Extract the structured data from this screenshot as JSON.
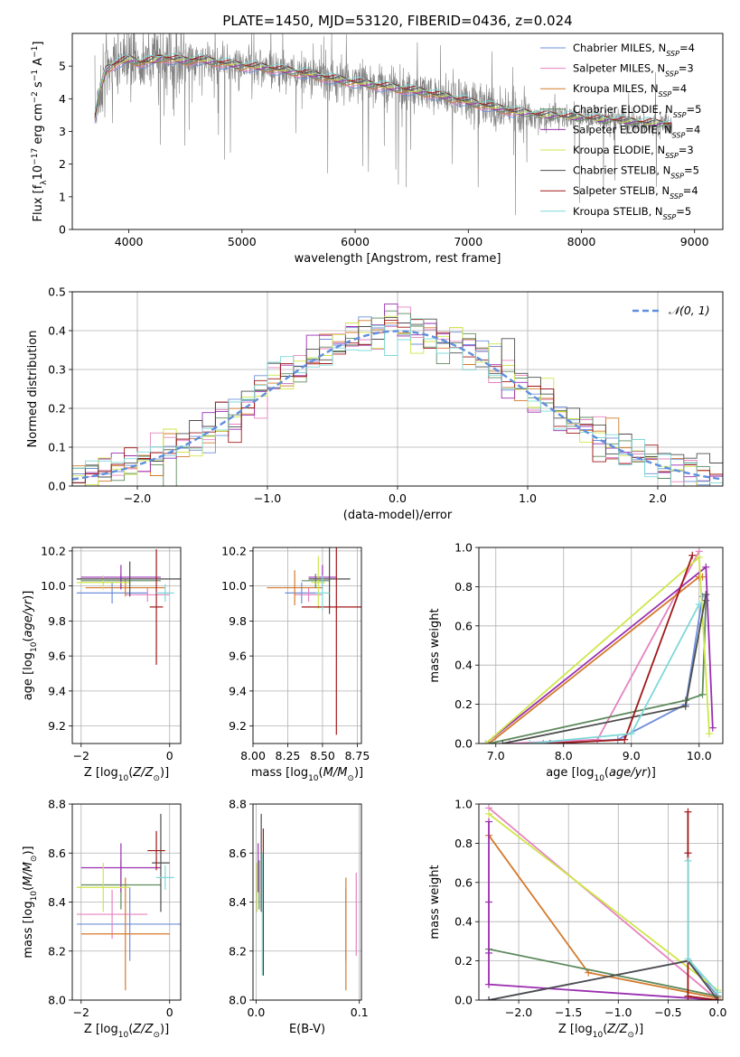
{
  "figure": {
    "title": "PLATE=1450, MJD=53120, FIBERID=0436, z=0.024"
  },
  "colors": {
    "chabrier_miles": "#6f8fd8",
    "salpeter_miles": "#e583c0",
    "kroupa_miles": "#d47a2c",
    "chabrier_elodie": "#5e8a5e",
    "salpeter_elodie": "#9a2fb0",
    "kroupa_elodie": "#cfe64b",
    "chabrier_stelib": "#4d4d4d",
    "salpeter_stelib": "#a01818",
    "kroupa_stelib": "#7fd8d8",
    "data": "#808080",
    "gaussian": "#5f8fdc",
    "grid": "#b0b0b0"
  },
  "chart_data": [
    {
      "id": "spectrum",
      "type": "line",
      "xlabel": "wavelength [Angstrom, rest frame]",
      "ylabel": "Flux [f_λ 10^-17 erg cm^-2 s^-1 A^-1]",
      "xlim": [
        3500,
        9250
      ],
      "ylim": [
        0,
        6
      ],
      "xticks": [
        4000,
        5000,
        6000,
        7000,
        8000,
        9000
      ],
      "yticks": [
        0,
        1,
        2,
        3,
        4,
        5
      ],
      "legend_position": "top-right",
      "data_series": {
        "name": "",
        "x_range": [
          3700,
          8800
        ]
      },
      "continuum_model": {
        "x": [
          3700,
          3750,
          3800,
          3900,
          4000,
          4100,
          4200,
          4300,
          4400,
          4500,
          4600,
          4800,
          5000,
          5200,
          5400,
          5600,
          5800,
          6000,
          6200,
          6400,
          6600,
          6800,
          7000,
          7200,
          7400,
          7600,
          7800,
          8000,
          8200,
          8400,
          8600,
          8800
        ],
        "y": [
          3.4,
          4.3,
          4.9,
          5.1,
          5.2,
          5.1,
          5.15,
          5.25,
          5.2,
          5.15,
          5.2,
          5.1,
          5.0,
          4.95,
          4.85,
          4.75,
          4.6,
          4.5,
          4.4,
          4.3,
          4.2,
          4.05,
          3.9,
          3.75,
          3.6,
          3.5,
          3.45,
          3.4,
          3.35,
          3.3,
          3.25,
          3.2
        ]
      },
      "series": [
        {
          "name": "Chabrier MILES, N_SSP=4",
          "label_main": "Chabrier MILES, N",
          "label_sub": "SSP",
          "label_end": "=4",
          "color_key": "chabrier_miles"
        },
        {
          "name": "Salpeter MILES, N_SSP=3",
          "label_main": "Salpeter MILES, N",
          "label_sub": "SSP",
          "label_end": "=3",
          "color_key": "salpeter_miles"
        },
        {
          "name": "Kroupa MILES, N_SSP=4",
          "label_main": "Kroupa MILES, N",
          "label_sub": "SSP",
          "label_end": "=4",
          "color_key": "kroupa_miles"
        },
        {
          "name": "Chabrier ELODIE, N_SSP=5",
          "label_main": "Chabrier ELODIE, N",
          "label_sub": "SSP",
          "label_end": "=5",
          "color_key": "chabrier_elodie"
        },
        {
          "name": "Salpeter ELODIE, N_SSP=4",
          "label_main": "Salpeter ELODIE, N",
          "label_sub": "SSP",
          "label_end": "=4",
          "color_key": "salpeter_elodie"
        },
        {
          "name": "Kroupa ELODIE, N_SSP=3",
          "label_main": "Kroupa ELODIE, N",
          "label_sub": "SSP",
          "label_end": "=3",
          "color_key": "kroupa_elodie"
        },
        {
          "name": "Chabrier STELIB, N_SSP=5",
          "label_main": "Chabrier STELIB, N",
          "label_sub": "SSP",
          "label_end": "=5",
          "color_key": "chabrier_stelib"
        },
        {
          "name": "Salpeter STELIB, N_SSP=4",
          "label_main": "Salpeter STELIB, N",
          "label_sub": "SSP",
          "label_end": "=4",
          "color_key": "salpeter_stelib"
        },
        {
          "name": "Kroupa STELIB, N_SSP=5",
          "label_main": "Kroupa STELIB, N",
          "label_sub": "SSP",
          "label_end": "=5",
          "color_key": "kroupa_stelib"
        }
      ]
    },
    {
      "id": "residuals",
      "type": "line",
      "xlabel": "(data-model)/error",
      "ylabel": "Normed distribution",
      "xlim": [
        -2.5,
        2.5
      ],
      "ylim": [
        0,
        0.5
      ],
      "xticks": [
        -2,
        -1,
        0,
        1,
        2
      ],
      "yticks": [
        0.0,
        0.1,
        0.2,
        0.3,
        0.4,
        0.5
      ],
      "legend_position": "top-right",
      "gaussian_legend": "𝒩(0, 1)",
      "bin_width": 0.1
    },
    {
      "id": "age_vs_z",
      "type": "scatter",
      "xlabel": "Z [log10(Z/Z_sun)]",
      "ylabel": "age [log10(age/yr)]",
      "xlim": [
        -2.2,
        0.25
      ],
      "ylim": [
        9.1,
        10.22
      ],
      "xticks": [
        -2,
        0
      ],
      "yticks": [
        9.2,
        9.4,
        9.6,
        9.8,
        10.0,
        10.2
      ],
      "points": [
        {
          "color_key": "chabrier_miles",
          "x": -1.3,
          "xerr": 0.8,
          "y": 9.96,
          "yerr": 0.06
        },
        {
          "color_key": "salpeter_miles",
          "x": -0.5,
          "xerr": 0.5,
          "y": 9.95,
          "yerr": 0.04
        },
        {
          "color_key": "kroupa_miles",
          "x": -1.0,
          "xerr": 0.9,
          "y": 9.99,
          "yerr": 0.05
        },
        {
          "color_key": "chabrier_elodie",
          "x": -1.1,
          "xerr": 0.9,
          "y": 10.03,
          "yerr": 0.04
        },
        {
          "color_key": "salpeter_elodie",
          "x": -1.1,
          "xerr": 0.9,
          "y": 10.05,
          "yerr": 0.07
        },
        {
          "color_key": "kroupa_elodie",
          "x": -1.5,
          "xerr": 0.6,
          "y": 10.02,
          "yerr": 0.04
        },
        {
          "color_key": "chabrier_stelib",
          "x": -0.9,
          "xerr": 1.2,
          "y": 10.04,
          "yerr": 0.1
        },
        {
          "color_key": "salpeter_stelib",
          "x": -0.3,
          "xerr": 0.15,
          "y": 9.88,
          "yerr": 0.33
        },
        {
          "color_key": "kroupa_stelib",
          "x": -0.1,
          "xerr": 0.2,
          "y": 9.96,
          "yerr": 0.05
        }
      ]
    },
    {
      "id": "age_vs_mass",
      "type": "scatter",
      "xlabel": "mass [log10(M/M_sun)]",
      "ylabel": "",
      "xlim": [
        8.0,
        8.78
      ],
      "ylim": [
        9.1,
        10.22
      ],
      "xticks": [
        8.0,
        8.25,
        8.5,
        8.75
      ],
      "yticks": [
        9.2,
        9.4,
        9.6,
        9.8,
        10.0,
        10.2
      ],
      "points": [
        {
          "color_key": "chabrier_miles",
          "x": 8.35,
          "xerr": 0.12,
          "y": 9.96,
          "yerr": 0.06
        },
        {
          "color_key": "salpeter_miles",
          "x": 8.4,
          "xerr": 0.1,
          "y": 9.95,
          "yerr": 0.04
        },
        {
          "color_key": "kroupa_miles",
          "x": 8.3,
          "xerr": 0.2,
          "y": 9.99,
          "yerr": 0.1
        },
        {
          "color_key": "chabrier_elodie",
          "x": 8.45,
          "xerr": 0.1,
          "y": 10.03,
          "yerr": 0.04
        },
        {
          "color_key": "salpeter_elodie",
          "x": 8.5,
          "xerr": 0.1,
          "y": 10.05,
          "yerr": 0.07
        },
        {
          "color_key": "kroupa_elodie",
          "x": 8.47,
          "xerr": 0.05,
          "y": 10.02,
          "yerr": 0.15
        },
        {
          "color_key": "chabrier_stelib",
          "x": 8.55,
          "xerr": 0.15,
          "y": 10.04,
          "yerr": 0.2
        },
        {
          "color_key": "salpeter_stelib",
          "x": 8.6,
          "xerr": 0.25,
          "y": 9.88,
          "yerr": 0.73
        },
        {
          "color_key": "kroupa_stelib",
          "x": 8.5,
          "xerr": 0.05,
          "y": 9.96,
          "yerr": 0.1
        }
      ]
    },
    {
      "id": "weight_vs_age",
      "type": "line",
      "xlabel": "age [log10(age/yr)]",
      "ylabel": "mass weight",
      "xlim": [
        6.75,
        10.35
      ],
      "ylim": [
        0,
        1
      ],
      "xticks": [
        7,
        8,
        9,
        10
      ],
      "yticks": [
        0.0,
        0.2,
        0.4,
        0.6,
        0.8,
        1.0
      ],
      "series": [
        {
          "color_key": "chabrier_miles",
          "x": [
            7.7,
            8.8,
            9.8,
            10.05
          ],
          "y": [
            0.0,
            0.02,
            0.2,
            0.75
          ]
        },
        {
          "color_key": "salpeter_miles",
          "x": [
            7.2,
            8.5,
            10.0
          ],
          "y": [
            0.0,
            0.02,
            0.98
          ]
        },
        {
          "color_key": "kroupa_miles",
          "x": [
            6.9,
            10.0,
            10.05
          ],
          "y": [
            0.0,
            0.85,
            0.85
          ]
        },
        {
          "color_key": "chabrier_elodie",
          "x": [
            6.9,
            9.8,
            10.05,
            10.1
          ],
          "y": [
            0.0,
            0.22,
            0.25,
            0.73
          ]
        },
        {
          "color_key": "salpeter_elodie",
          "x": [
            6.85,
            10.1,
            10.2
          ],
          "y": [
            0.0,
            0.9,
            0.08
          ]
        },
        {
          "color_key": "kroupa_elodie",
          "x": [
            6.85,
            10.0,
            10.15
          ],
          "y": [
            0.0,
            0.95,
            0.05
          ]
        },
        {
          "color_key": "chabrier_stelib",
          "x": [
            7.1,
            9.8,
            10.1
          ],
          "y": [
            0.0,
            0.19,
            0.76
          ]
        },
        {
          "color_key": "salpeter_stelib",
          "x": [
            7.8,
            8.9,
            9.9
          ],
          "y": [
            0.0,
            0.02,
            0.96
          ]
        },
        {
          "color_key": "kroupa_stelib",
          "x": [
            7.5,
            9.0,
            10.0
          ],
          "y": [
            0.0,
            0.05,
            0.71
          ]
        }
      ]
    },
    {
      "id": "mass_vs_z",
      "type": "scatter",
      "xlabel": "Z [log10(Z/Z_sun)]",
      "ylabel": "mass [log10(M/M_sun)]",
      "xlim": [
        -2.2,
        0.25
      ],
      "ylim": [
        8.0,
        8.8
      ],
      "xticks": [
        -2,
        0
      ],
      "yticks": [
        8.0,
        8.2,
        8.4,
        8.6,
        8.8
      ],
      "points": [
        {
          "color_key": "chabrier_miles",
          "x": -0.9,
          "xerr": 1.2,
          "y": 8.31,
          "yerr": 0.15
        },
        {
          "color_key": "salpeter_miles",
          "x": -1.3,
          "xerr": 0.8,
          "y": 8.35,
          "yerr": 0.1
        },
        {
          "color_key": "kroupa_miles",
          "x": -1.0,
          "xerr": 1.0,
          "y": 8.27,
          "yerr": 0.23
        },
        {
          "color_key": "chabrier_elodie",
          "x": -1.1,
          "xerr": 0.9,
          "y": 8.47,
          "yerr": 0.1
        },
        {
          "color_key": "salpeter_elodie",
          "x": -1.1,
          "xerr": 0.9,
          "y": 8.54,
          "yerr": 0.1
        },
        {
          "color_key": "kroupa_elodie",
          "x": -1.5,
          "xerr": 0.6,
          "y": 8.46,
          "yerr": 0.1
        },
        {
          "color_key": "chabrier_stelib",
          "x": -0.2,
          "xerr": 0.2,
          "y": 8.56,
          "yerr": 0.2
        },
        {
          "color_key": "salpeter_stelib",
          "x": -0.3,
          "xerr": 0.2,
          "y": 8.61,
          "yerr": 0.08
        },
        {
          "color_key": "kroupa_stelib",
          "x": -0.1,
          "xerr": 0.2,
          "y": 8.5,
          "yerr": 0.05
        }
      ]
    },
    {
      "id": "mass_vs_ebv",
      "type": "scatter",
      "xlabel": "E(B-V)",
      "ylabel": "",
      "xlim": [
        -0.003,
        0.102
      ],
      "ylim": [
        8.0,
        8.8
      ],
      "xticks": [
        0.0,
        0.1
      ],
      "yticks": [
        8.0,
        8.2,
        8.4,
        8.6,
        8.8
      ],
      "points": [
        {
          "color_key": "chabrier_miles",
          "x": 0.087,
          "y": 8.31,
          "yerr": 0.15
        },
        {
          "color_key": "salpeter_miles",
          "x": 0.097,
          "y": 8.35,
          "yerr": 0.17
        },
        {
          "color_key": "kroupa_miles",
          "x": 0.087,
          "y": 8.27,
          "yerr": 0.23
        },
        {
          "color_key": "chabrier_elodie",
          "x": 0.003,
          "y": 8.47,
          "yerr": 0.1
        },
        {
          "color_key": "salpeter_elodie",
          "x": 0.002,
          "y": 8.54,
          "yerr": 0.1
        },
        {
          "color_key": "kroupa_elodie",
          "x": 0.001,
          "y": 8.46,
          "yerr": 0.1
        },
        {
          "color_key": "chabrier_stelib",
          "x": 0.005,
          "y": 8.56,
          "yerr": 0.2
        },
        {
          "color_key": "salpeter_stelib",
          "x": 0.007,
          "y": 8.4,
          "yerr": 0.3
        },
        {
          "color_key": "kroupa_stelib",
          "x": 0.006,
          "y": 8.35,
          "yerr": 0.25
        }
      ]
    },
    {
      "id": "weight_vs_z",
      "type": "line",
      "xlabel": "Z [log10(Z/Z_sun)]",
      "ylabel": "mass weight",
      "xlim": [
        -2.4,
        0.05
      ],
      "ylim": [
        0,
        1
      ],
      "xticks": [
        -2.0,
        -1.5,
        -1.0,
        -0.5,
        0.0
      ],
      "yticks": [
        0.0,
        0.2,
        0.4,
        0.6,
        0.8,
        1.0
      ],
      "series": [
        {
          "color_key": "chabrier_miles",
          "x": [
            -2.3,
            -0.3,
            0.0
          ],
          "y": [
            0.0,
            0.2,
            0.02
          ]
        },
        {
          "color_key": "salpeter_miles",
          "x": [
            -2.3,
            0.0
          ],
          "y": [
            0.98,
            0.0
          ]
        },
        {
          "color_key": "kroupa_miles",
          "x": [
            -2.3,
            -1.3,
            0.0
          ],
          "y": [
            0.84,
            0.14,
            0.01
          ]
        },
        {
          "color_key": "chabrier_elodie",
          "x": [
            -2.3,
            0.0
          ],
          "y": [
            0.26,
            0.02
          ]
        },
        {
          "color_key": "salpeter_elodie",
          "x": [
            -2.3,
            -2.3,
            -2.3,
            -2.3,
            0.0
          ],
          "y": [
            0.91,
            0.5,
            0.24,
            0.08,
            0.0
          ]
        },
        {
          "color_key": "kroupa_elodie",
          "x": [
            -2.3,
            0.0
          ],
          "y": [
            0.95,
            0.05
          ]
        },
        {
          "color_key": "chabrier_stelib",
          "x": [
            -2.3,
            -0.3,
            0.0
          ],
          "y": [
            0.0,
            0.2,
            0.0
          ]
        },
        {
          "color_key": "salpeter_stelib",
          "x": [
            -0.3,
            -0.3,
            -0.3,
            0.0
          ],
          "y": [
            0.96,
            0.75,
            0.02,
            0.0
          ]
        },
        {
          "color_key": "kroupa_stelib",
          "x": [
            -0.3,
            -0.3,
            0.0
          ],
          "y": [
            0.71,
            0.21,
            0.04
          ]
        }
      ]
    }
  ]
}
